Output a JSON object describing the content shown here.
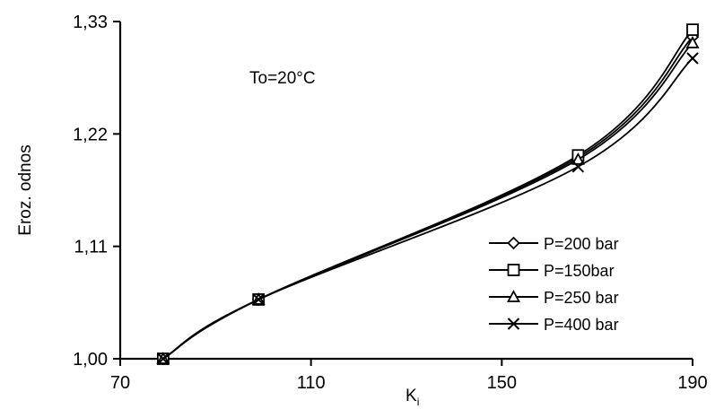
{
  "chart_data": {
    "type": "line",
    "title": "",
    "annotation": "To=20°C",
    "xlabel": "K",
    "xlabel_subscript": "i",
    "ylabel": "Eroz. odnos",
    "xlim": [
      70,
      190
    ],
    "ylim": [
      1.0,
      1.33
    ],
    "x_ticks": [
      70,
      110,
      150,
      190
    ],
    "x_tick_labels": [
      "70",
      "110",
      "150",
      "190"
    ],
    "y_ticks": [
      1.0,
      1.11,
      1.22,
      1.33
    ],
    "y_tick_labels": [
      "1,00",
      "1,11",
      "1,22",
      "1,33"
    ],
    "grid": false,
    "legend_position": "bottom-right",
    "x": [
      79,
      99,
      166,
      190
    ],
    "series": [
      {
        "name": "P=200 bar",
        "marker": "diamond",
        "values": [
          1.0,
          1.058,
          1.197,
          1.315
        ]
      },
      {
        "name": "P=150bar",
        "marker": "square",
        "values": [
          1.0,
          1.058,
          1.199,
          1.322
        ]
      },
      {
        "name": "P=250 bar",
        "marker": "triangle",
        "values": [
          1.0,
          1.058,
          1.195,
          1.309
        ]
      },
      {
        "name": "P=400 bar",
        "marker": "x",
        "values": [
          1.0,
          1.058,
          1.188,
          1.294
        ]
      }
    ]
  }
}
